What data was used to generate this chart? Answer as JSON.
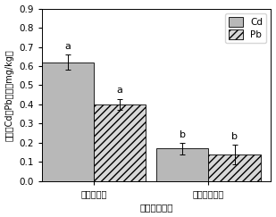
{
  "groups": [
    "淡洗后土壤",
    "再生利用土壤"
  ],
  "cd_values": [
    0.62,
    0.17
  ],
  "pb_values": [
    0.4,
    0.14
  ],
  "cd_errors": [
    0.04,
    0.03
  ],
  "pb_errors": [
    0.03,
    0.05
  ],
  "letters_cd": [
    "a",
    "b"
  ],
  "letters_pb": [
    "a",
    "b"
  ],
  "ylabel": "稻米中Cd、Pb含量（mg/kg）",
  "xlabel": "不同处理土壤",
  "ylim": [
    0.0,
    0.9
  ],
  "yticks": [
    0.0,
    0.1,
    0.2,
    0.3,
    0.4,
    0.5,
    0.6,
    0.7,
    0.8,
    0.9
  ],
  "cd_color": "#b8b8b8",
  "pb_color": "#d8d8d8",
  "bar_width": 0.25,
  "legend_labels": [
    "Cd",
    "Pb"
  ]
}
